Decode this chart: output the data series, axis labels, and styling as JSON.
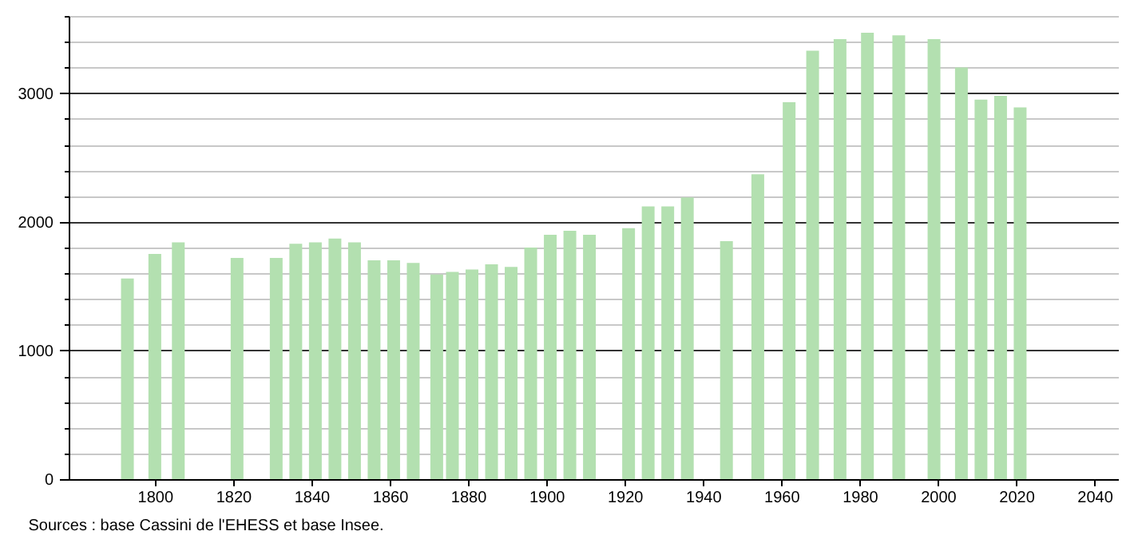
{
  "chart_data": {
    "type": "bar",
    "annotations": [
      "Sources : base Cassini de l'EHESS et base Insee."
    ],
    "x": [
      1793,
      1800,
      1806,
      1821,
      1831,
      1836,
      1841,
      1846,
      1851,
      1856,
      1861,
      1866,
      1872,
      1876,
      1881,
      1886,
      1891,
      1896,
      1901,
      1906,
      1911,
      1921,
      1926,
      1931,
      1936,
      1946,
      1954,
      1962,
      1968,
      1975,
      1982,
      1990,
      1999,
      2006,
      2011,
      2016,
      2021
    ],
    "values": [
      1560,
      1750,
      1840,
      1720,
      1720,
      1830,
      1840,
      1870,
      1840,
      1700,
      1700,
      1680,
      1590,
      1610,
      1630,
      1670,
      1650,
      1800,
      1900,
      1930,
      1900,
      1950,
      2120,
      2120,
      2190,
      1850,
      2370,
      2930,
      3330,
      3420,
      3470,
      3450,
      3420,
      3200,
      2950,
      2980,
      2890
    ],
    "color": "#b3e0b0",
    "xlim": [
      1778,
      2046
    ],
    "xticks": [
      1800,
      1820,
      1840,
      1860,
      1880,
      1900,
      1920,
      1940,
      1960,
      1980,
      2000,
      2020,
      2040
    ],
    "ylim": [
      0,
      3600
    ],
    "yticks": [
      0,
      {
        "value": 200,
        "label": null
      },
      {
        "value": 400,
        "label": null
      },
      {
        "value": 600,
        "label": null
      },
      {
        "value": 800,
        "label": null
      },
      1000,
      {
        "value": 1200,
        "label": null
      },
      {
        "value": 1400,
        "label": null
      },
      {
        "value": 1600,
        "label": null
      },
      {
        "value": 1800,
        "label": null
      },
      2000,
      {
        "value": 2200,
        "label": null
      },
      {
        "value": 2400,
        "label": null
      },
      {
        "value": 2600,
        "label": null
      },
      {
        "value": 2800,
        "label": null
      },
      3000,
      {
        "value": 3200,
        "label": null
      },
      {
        "value": 3400,
        "label": null
      },
      {
        "value": 3600,
        "label": null
      }
    ],
    "grid": "y"
  }
}
